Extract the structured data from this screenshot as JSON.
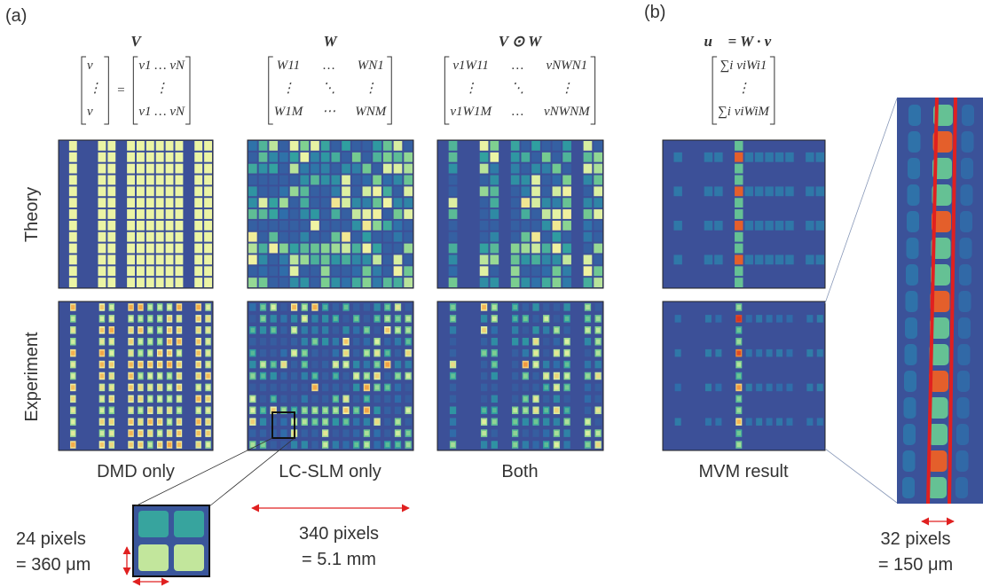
{
  "panel_labels": [
    "(a)",
    "(b)"
  ],
  "row_labels": [
    "Theory",
    "Experiment"
  ],
  "columns": [
    {
      "title": "V",
      "matrices": [
        [
          [
            "v⃗"
          ],
          [
            "⋮"
          ],
          [
            "v⃗"
          ]
        ],
        [
          [
            "v1 … vN"
          ],
          [
            "⋮"
          ],
          [
            "v1 … vN"
          ]
        ]
      ],
      "operator": "=",
      "caption": "DMD only"
    },
    {
      "title": "W",
      "matrices": [
        [
          [
            "W11",
            "…",
            "WN1"
          ],
          [
            "⋮",
            "⋱",
            "⋮"
          ],
          [
            "W1M",
            "⋯",
            "WNM"
          ]
        ]
      ],
      "caption": "LC-SLM only"
    },
    {
      "title": "V ⊙ W",
      "matrices": [
        [
          [
            "v1W11",
            "…",
            "vNWN1"
          ],
          [
            "⋮",
            "⋱",
            "⋮"
          ],
          [
            "v1W1M",
            "…",
            "vNWNM"
          ]
        ]
      ],
      "caption": "Both"
    },
    {
      "title": "u⃗ = W · v⃗",
      "matrices": [
        [
          [
            "∑i viWi1"
          ],
          [
            "⋮"
          ],
          [
            "∑i viWiM"
          ]
        ]
      ],
      "caption": "MVM result"
    }
  ],
  "scale_notes": [
    [
      "24 pixels",
      "= 360 μm"
    ],
    [
      "340 pixels",
      "= 5.1 mm"
    ],
    [
      "32 pixels",
      "= 150 μm"
    ]
  ]
}
